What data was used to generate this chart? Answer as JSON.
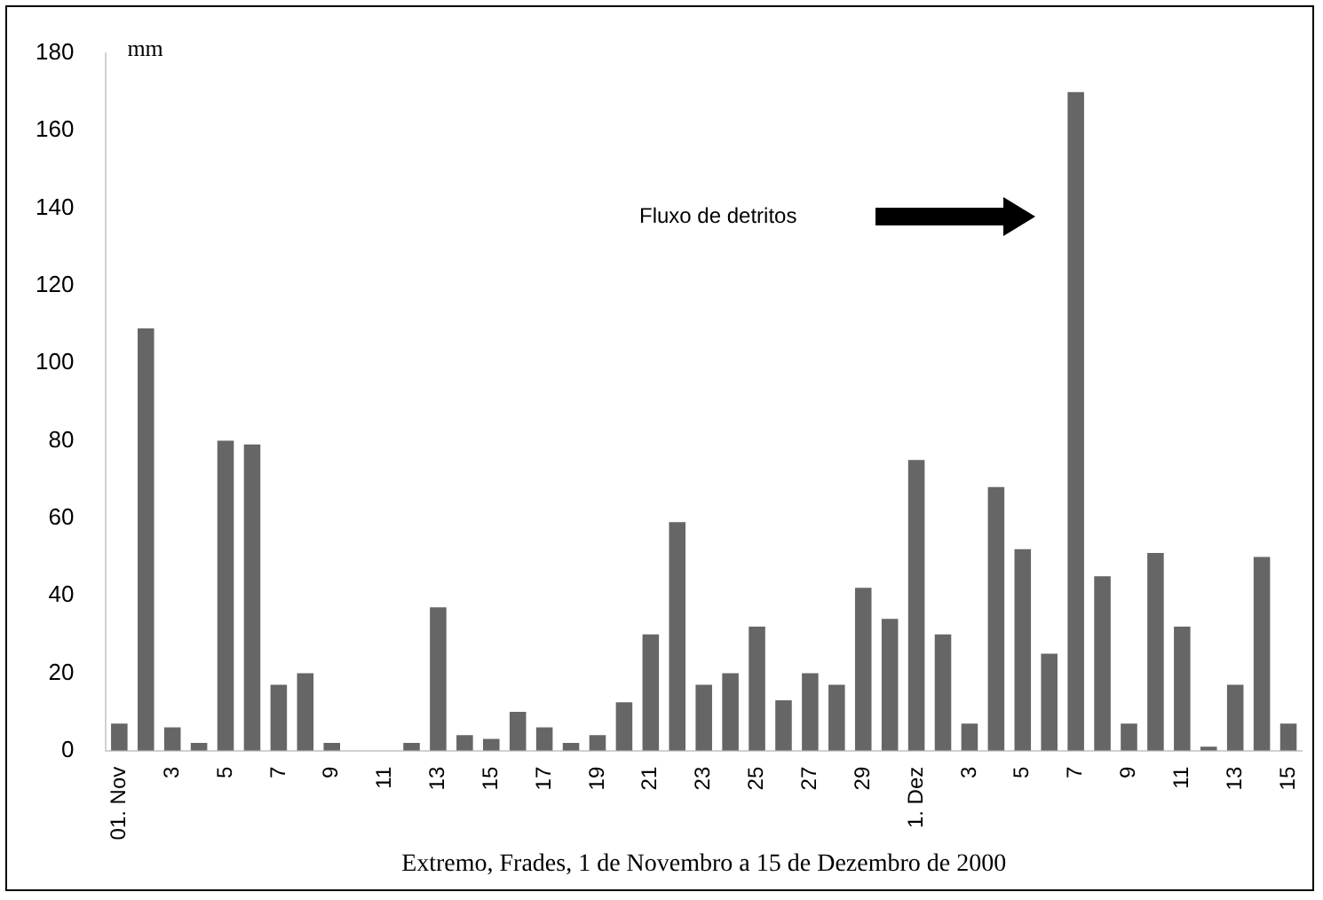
{
  "chart_data": {
    "type": "bar",
    "xlabel": "Extremo, Frades, 1 de Novembro a 15 de Dezembro de 2000",
    "ylabel": "mm",
    "categories": [
      "01. Nov",
      null,
      "3",
      null,
      "5",
      null,
      "7",
      null,
      "9",
      null,
      "11",
      null,
      "13",
      null,
      "15",
      null,
      "17",
      null,
      "19",
      null,
      "21",
      null,
      "23",
      null,
      "25",
      null,
      "27",
      null,
      "29",
      null,
      "1. Dez",
      null,
      "3",
      null,
      "5",
      null,
      "7",
      null,
      "9",
      null,
      "11",
      null,
      "13",
      null,
      "15"
    ],
    "values": [
      7,
      109,
      6,
      2,
      80,
      79,
      17,
      20,
      2,
      0,
      0,
      2,
      37,
      4,
      3,
      10,
      6,
      2,
      4,
      12.5,
      30,
      59,
      17,
      20,
      32,
      13,
      20,
      17,
      42,
      34,
      75,
      30,
      7,
      68,
      52,
      25,
      170,
      45,
      7,
      51,
      32,
      1,
      17,
      50,
      7
    ],
    "color": "#666666",
    "ylim": [
      0,
      180
    ],
    "yticks": [
      0,
      20,
      40,
      60,
      80,
      100,
      120,
      140,
      160,
      180
    ],
    "annotations": [
      "Fluxo de detritos"
    ]
  }
}
